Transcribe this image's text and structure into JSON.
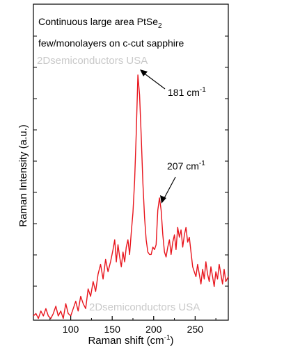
{
  "chart_data": {
    "type": "line",
    "title_line1_main": "Continuous large area PtSe",
    "title_line1_sub": "2",
    "title_line2": "few/monolayers on c-cut sapphire",
    "xlabel_main": "Raman shift (cm",
    "xlabel_sup": "-1",
    "xlabel_end": ")",
    "ylabel": "Raman Intensity (a.u.)",
    "xlim": [
      55,
      290
    ],
    "ylim": [
      0,
      100
    ],
    "xticks": [
      100,
      150,
      200,
      250
    ],
    "y_ticks_labeled": false,
    "grid": false,
    "annotations": [
      {
        "text": "181 cm",
        "sup": "-1",
        "x": 181,
        "y": 100
      },
      {
        "text": "207 cm",
        "sup": "-1",
        "x": 207,
        "y": 50
      }
    ],
    "series": [
      {
        "color": "#e8141c",
        "x": [
          55,
          58,
          61,
          64,
          67,
          70,
          73,
          76,
          79,
          82,
          85,
          88,
          91,
          94,
          97,
          100,
          103,
          106,
          109,
          112,
          115,
          118,
          121,
          124,
          127,
          130,
          133,
          136,
          139,
          142,
          145,
          148,
          151,
          153,
          155,
          157,
          159,
          161,
          163,
          165,
          167,
          169,
          171,
          173,
          175,
          177,
          179,
          181,
          183,
          185,
          187,
          189,
          191,
          193,
          195,
          197,
          199,
          201,
          203,
          205,
          207,
          209,
          211,
          213,
          215,
          217,
          219,
          221,
          223,
          225,
          227,
          229,
          231,
          233,
          235,
          237,
          239,
          241,
          243,
          245,
          247,
          249,
          251,
          253,
          255,
          257,
          259,
          261,
          263,
          265,
          267,
          269,
          271,
          273,
          275,
          277,
          279,
          281,
          283,
          285,
          287,
          290
        ],
        "y": [
          2,
          3,
          1,
          4,
          2,
          5,
          2,
          1,
          3,
          6,
          2,
          4,
          1,
          7,
          3,
          2,
          5,
          8,
          4,
          10,
          7,
          5,
          13,
          10,
          16,
          12,
          19,
          23,
          17,
          25,
          20,
          24,
          29,
          33,
          24,
          31,
          26,
          22,
          28,
          24,
          30,
          33,
          27,
          36,
          44,
          57,
          76,
          100,
          92,
          75,
          56,
          42,
          33,
          28,
          27,
          27,
          30,
          29,
          31,
          45,
          50,
          45,
          35,
          28,
          26,
          30,
          33,
          27,
          32,
          35,
          29,
          38,
          34,
          37,
          30,
          35,
          38,
          32,
          34,
          28,
          22,
          20,
          18,
          23,
          19,
          15,
          21,
          17,
          24,
          19,
          16,
          22,
          18,
          14,
          20,
          17,
          23,
          19,
          15,
          21,
          16,
          18
        ]
      }
    ]
  },
  "watermarks": {
    "top": "2Dsemiconductors USA",
    "bottom": "2Dsemiconductors USA"
  }
}
